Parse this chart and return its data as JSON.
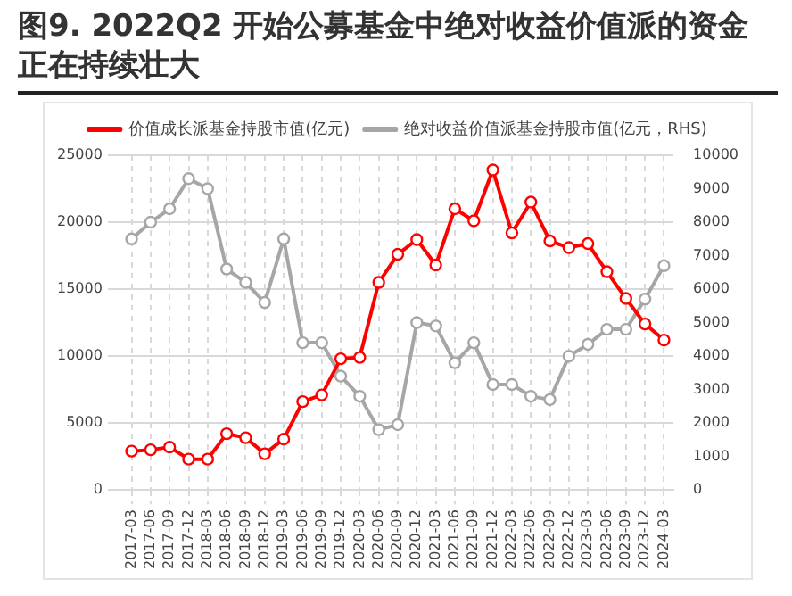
{
  "chart_data": {
    "type": "line",
    "title": "图9. 2022Q2 开始公募基金中绝对收益价值派的资金正在持续壮大",
    "categories": [
      "2017-03",
      "2017-06",
      "2017-09",
      "2017-12",
      "2018-03",
      "2018-06",
      "2018-09",
      "2018-12",
      "2019-03",
      "2019-06",
      "2019-09",
      "2019-12",
      "2020-03",
      "2020-06",
      "2020-09",
      "2020-12",
      "2021-03",
      "2021-06",
      "2021-09",
      "2021-12",
      "2022-03",
      "2022-06",
      "2022-09",
      "2022-12",
      "2023-03",
      "2023-06",
      "2023-09",
      "2023-12",
      "2024-03"
    ],
    "series": [
      {
        "name": "价值成长派基金持股市值(亿元)",
        "color": "#ff0000",
        "values": [
          2900,
          3000,
          3200,
          2300,
          2300,
          4200,
          3900,
          2700,
          3800,
          6600,
          7100,
          9800,
          9900,
          15500,
          17600,
          18700,
          16800,
          21000,
          20100,
          23900,
          19200,
          21500,
          18600,
          18100,
          18400,
          16300,
          14300,
          12400,
          11200
        ]
      },
      {
        "name": "绝对收益价值派基金持股市值(亿元，RHS)",
        "color": "#a6a6a6",
        "axis": "y2",
        "values": [
          7500,
          8000,
          8400,
          9300,
          9000,
          6600,
          6200,
          5600,
          7500,
          4400,
          4400,
          3400,
          2800,
          1800,
          1950,
          5000,
          4900,
          3800,
          4400,
          3150,
          3150,
          2800,
          2700,
          4000,
          4350,
          4800,
          4800,
          5700,
          6700
        ]
      }
    ],
    "ylim": [
      0,
      25000
    ],
    "yticks": [
      0,
      5000,
      10000,
      15000,
      20000,
      25000
    ],
    "y2lim": [
      0,
      10000
    ],
    "y2ticks": [
      0,
      1000,
      2000,
      3000,
      4000,
      5000,
      6000,
      7000,
      8000,
      9000,
      10000
    ],
    "grid": true,
    "legend": "top",
    "marker": "circle",
    "line_style": "solid"
  }
}
